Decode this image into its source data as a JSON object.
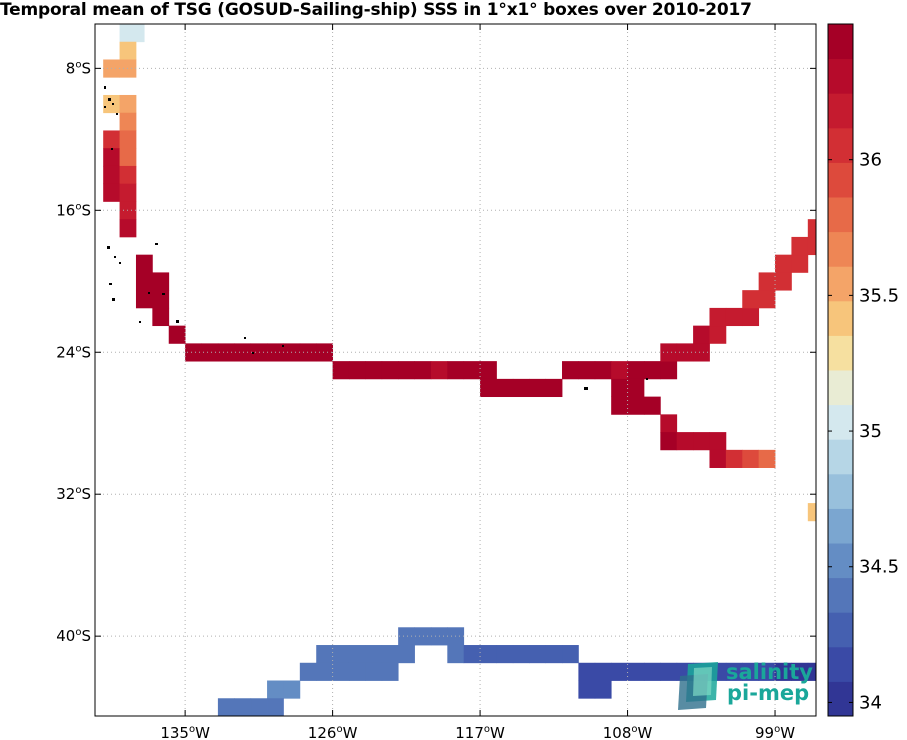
{
  "title": "Temporal mean of TSG (GOSUD-Sailing-ship) SSS in 1°x1° boxes over 2010-2017",
  "lat_ticks": [
    {
      "lat": -8,
      "label": "8",
      "suffix": "S"
    },
    {
      "lat": -16,
      "label": "16",
      "suffix": "S"
    },
    {
      "lat": -24,
      "label": "24",
      "suffix": "S"
    },
    {
      "lat": -32,
      "label": "32",
      "suffix": "S"
    },
    {
      "lat": -40,
      "label": "40",
      "suffix": "S"
    }
  ],
  "lon_ticks": [
    {
      "lon": -135,
      "label": "135",
      "suffix": "W"
    },
    {
      "lon": -126,
      "label": "126",
      "suffix": "W"
    },
    {
      "lon": -117,
      "label": "117",
      "suffix": "W"
    },
    {
      "lon": -108,
      "label": "108",
      "suffix": "W"
    },
    {
      "lon": -99,
      "label": "99",
      "suffix": "W"
    }
  ],
  "colorbar": {
    "min": 33.95,
    "max": 36.5,
    "ticks": [
      "34",
      "34.5",
      "35",
      "35.5",
      "36"
    ],
    "colors": [
      "#313695",
      "#3a4aa6",
      "#4560b0",
      "#5476b9",
      "#648dc4",
      "#7ba6d0",
      "#98c0dc",
      "#b6d6e6",
      "#d4e8ee",
      "#e9ecd4",
      "#f6e0a0",
      "#f7c57b",
      "#f4a468",
      "#ee8655",
      "#e76a48",
      "#dd4a3c",
      "#d22f34",
      "#c51b2f",
      "#b60b2b",
      "#a50026"
    ]
  },
  "logo": {
    "line1": "salinity",
    "line2": "pi-mep"
  },
  "chart_data": {
    "type": "heatmap",
    "title": "Temporal mean of TSG (GOSUD-Sailing-ship) SSS in 1°x1° boxes over 2010-2017",
    "extent": {
      "lon": [
        -140.5,
        -96.5
      ],
      "lat": [
        -44.5,
        -5.5
      ]
    },
    "cells": [
      [
        -138.5,
        -6,
        35.05
      ],
      [
        -138,
        -6,
        35.05
      ],
      [
        -138.5,
        -7,
        35.45
      ],
      [
        -139.5,
        -8,
        35.55
      ],
      [
        -138.5,
        -8,
        35.55
      ],
      [
        -139.5,
        -10,
        35.45
      ],
      [
        -138.5,
        -10,
        35.5
      ],
      [
        -138.5,
        -11,
        35.65
      ],
      [
        -139.5,
        -12,
        36.1
      ],
      [
        -138.5,
        -12,
        35.75
      ],
      [
        -139.5,
        -13,
        36.3
      ],
      [
        -138.5,
        -13,
        35.85
      ],
      [
        -139.5,
        -14,
        36.25
      ],
      [
        -138.5,
        -14,
        36.0
      ],
      [
        -139.5,
        -15,
        36.35
      ],
      [
        -138.5,
        -15,
        36.15
      ],
      [
        -138.5,
        -16,
        36.2
      ],
      [
        -138.5,
        -17,
        36.35
      ],
      [
        -137.5,
        -19,
        36.45
      ],
      [
        -137.5,
        -20,
        36.45
      ],
      [
        -136.5,
        -20,
        36.45
      ],
      [
        -137.5,
        -21,
        36.45
      ],
      [
        -136.5,
        -21,
        36.45
      ],
      [
        -136.5,
        -22,
        36.45
      ],
      [
        -135.5,
        -23,
        36.45
      ],
      [
        -134.5,
        -24,
        36.45
      ],
      [
        -133.5,
        -24,
        36.45
      ],
      [
        -132.5,
        -24,
        36.45
      ],
      [
        -131.5,
        -24,
        36.45
      ],
      [
        -130.5,
        -24,
        36.45
      ],
      [
        -129.5,
        -24,
        36.45
      ],
      [
        -128.5,
        -24,
        36.45
      ],
      [
        -127.5,
        -24,
        36.45
      ],
      [
        -126.5,
        -24,
        36.45
      ],
      [
        -125.5,
        -25,
        36.4
      ],
      [
        -124.5,
        -25,
        36.45
      ],
      [
        -123.5,
        -25,
        36.45
      ],
      [
        -122.5,
        -25,
        36.45
      ],
      [
        -121.5,
        -25,
        36.45
      ],
      [
        -120.5,
        -25,
        36.45
      ],
      [
        -119.5,
        -25,
        36.3
      ],
      [
        -118.5,
        -25,
        36.4
      ],
      [
        -117.5,
        -25,
        36.45
      ],
      [
        -116.5,
        -25,
        36.45
      ],
      [
        -116.5,
        -26,
        36.45
      ],
      [
        -115.5,
        -26,
        36.45
      ],
      [
        -114.5,
        -26,
        36.4
      ],
      [
        -113.5,
        -26,
        36.45
      ],
      [
        -112.5,
        -26,
        36.45
      ],
      [
        -111.5,
        -25,
        36.45
      ],
      [
        -110.5,
        -25,
        36.45
      ],
      [
        -109.5,
        -25,
        36.45
      ],
      [
        -108.5,
        -25,
        36.25
      ],
      [
        -107.5,
        -25,
        36.45
      ],
      [
        -106.5,
        -25,
        36.4
      ],
      [
        -105.5,
        -25,
        36.45
      ],
      [
        -108.5,
        -26,
        36.45
      ],
      [
        -107.5,
        -26,
        36.45
      ],
      [
        -108.5,
        -27,
        36.45
      ],
      [
        -107.5,
        -27,
        36.4
      ],
      [
        -106.5,
        -27,
        36.45
      ],
      [
        -105.5,
        -28,
        36.35
      ],
      [
        -105.5,
        -29,
        36.4
      ],
      [
        -104.5,
        -29,
        36.35
      ],
      [
        -103.5,
        -29,
        36.3
      ],
      [
        -102.5,
        -29,
        36.3
      ],
      [
        -102.5,
        -30,
        36.3
      ],
      [
        -101.5,
        -30,
        36.0
      ],
      [
        -100.5,
        -30,
        35.9
      ],
      [
        -99.5,
        -30,
        35.85
      ],
      [
        -105.5,
        -24,
        36.3
      ],
      [
        -104.5,
        -24,
        36.3
      ],
      [
        -103.5,
        -24,
        36.25
      ],
      [
        -103.5,
        -23,
        36.25
      ],
      [
        -102.5,
        -23,
        36.2
      ],
      [
        -102.5,
        -22,
        36.2
      ],
      [
        -101.5,
        -22,
        36.15
      ],
      [
        -100.5,
        -22,
        36.15
      ],
      [
        -100.5,
        -21,
        36.1
      ],
      [
        -99.5,
        -21,
        36.1
      ],
      [
        -99.5,
        -20,
        36.1
      ],
      [
        -98.5,
        -20,
        36.1
      ],
      [
        -98.5,
        -19,
        36.05
      ],
      [
        -97.5,
        -19,
        36.05
      ],
      [
        -97.5,
        -18,
        36.05
      ],
      [
        -96.5,
        -18,
        36.0
      ],
      [
        -96.5,
        -17,
        36.0
      ],
      [
        -95.5,
        -17,
        36.0
      ],
      [
        -95.5,
        -16,
        36.05
      ],
      [
        -94.5,
        -16,
        36.05
      ],
      [
        -94.5,
        -15,
        36.05
      ],
      [
        -93.5,
        -15,
        36.1
      ],
      [
        -94.5,
        -14,
        36.05
      ],
      [
        -93.5,
        -14,
        36.1
      ],
      [
        -92.5,
        -14,
        36.05
      ],
      [
        -92.5,
        -13,
        35.95
      ],
      [
        -91.5,
        -13,
        35.95
      ],
      [
        -90.5,
        -13,
        35.9
      ],
      [
        -91.5,
        -12,
        35.85
      ],
      [
        -90.5,
        -12,
        35.85
      ],
      [
        -89.5,
        -12,
        35.9
      ],
      [
        -89.5,
        -11,
        35.55
      ],
      [
        -91.5,
        -11,
        35.4
      ],
      [
        -92.5,
        -12,
        35.5
      ],
      [
        -91.5,
        -10,
        35.05
      ],
      [
        -90.5,
        -10,
        34.8
      ],
      [
        -90.5,
        -11,
        34.8
      ],
      [
        -92.5,
        -11,
        35.05
      ],
      [
        -90.5,
        -9,
        34.75
      ],
      [
        -89.5,
        -9,
        34.6
      ],
      [
        -88.5,
        -9,
        34.55
      ],
      [
        -88.5,
        -8,
        34.4
      ],
      [
        -89.5,
        -12,
        35.55
      ],
      [
        -96.5,
        -33,
        35.45
      ],
      [
        -121.5,
        -40,
        34.35
      ],
      [
        -120.5,
        -40,
        34.35
      ],
      [
        -119.5,
        -40,
        34.35
      ],
      [
        -118.5,
        -40,
        34.35
      ],
      [
        -123.5,
        -41,
        34.35
      ],
      [
        -122.5,
        -41,
        34.35
      ],
      [
        -121.5,
        -41,
        34.35
      ],
      [
        -118.5,
        -41,
        34.35
      ],
      [
        -117.5,
        -41,
        34.3
      ],
      [
        -116.5,
        -41,
        34.3
      ],
      [
        -115.5,
        -41,
        34.3
      ],
      [
        -114.5,
        -41,
        34.25
      ],
      [
        -113.5,
        -41,
        34.25
      ],
      [
        -112.5,
        -41,
        34.25
      ],
      [
        -111.5,
        -41,
        34.3
      ],
      [
        -110.5,
        -42,
        34.2
      ],
      [
        -109.5,
        -42,
        34.2
      ],
      [
        -108.5,
        -42,
        34.2
      ],
      [
        -107.5,
        -42,
        34.2
      ],
      [
        -106.5,
        -42,
        34.2
      ],
      [
        -105.5,
        -42,
        34.2
      ],
      [
        -104.5,
        -42,
        34.2
      ],
      [
        -103.5,
        -42,
        34.2
      ],
      [
        -102.5,
        -42,
        34.2
      ],
      [
        -101.5,
        -42,
        34.2
      ],
      [
        -100.5,
        -42,
        34.1
      ],
      [
        -99.5,
        -42,
        34.1
      ],
      [
        -98.5,
        -42,
        34.05
      ],
      [
        -97.5,
        -42,
        34.05
      ],
      [
        -96.5,
        -42,
        34.05
      ],
      [
        -95.5,
        -42,
        34.05
      ],
      [
        -110.5,
        -43,
        34.2
      ],
      [
        -109.5,
        -43,
        34.2
      ],
      [
        -126.5,
        -41,
        34.4
      ],
      [
        -125.5,
        -41,
        34.4
      ],
      [
        -124.5,
        -41,
        34.4
      ],
      [
        -127.5,
        -42,
        34.45
      ],
      [
        -126.5,
        -42,
        34.45
      ],
      [
        -125.5,
        -42,
        34.45
      ],
      [
        -124.5,
        -42,
        34.45
      ],
      [
        -123.5,
        -42,
        34.45
      ],
      [
        -122.5,
        -42,
        34.45
      ],
      [
        -129.5,
        -43,
        34.5
      ],
      [
        -128.5,
        -43,
        34.5
      ],
      [
        -130.5,
        -44,
        34.45
      ],
      [
        -129.5,
        -44,
        34.45
      ],
      [
        -132.5,
        -44,
        34.4
      ],
      [
        -131.5,
        -44,
        34.4
      ],
      [
        -134.5,
        -45,
        34.35
      ],
      [
        -133.5,
        -45,
        34.35
      ],
      [
        -135.5,
        -45,
        34.35
      ],
      [
        -136.5,
        -45,
        34.35
      ],
      [
        -94.5,
        -43,
        34.05
      ],
      [
        -93.5,
        -43,
        34.05
      ],
      [
        -92.5,
        -43,
        34.0
      ],
      [
        -93.5,
        -44,
        34.0
      ],
      [
        -92.5,
        -44,
        34.0
      ],
      [
        -91.5,
        -44,
        33.95
      ]
    ]
  }
}
